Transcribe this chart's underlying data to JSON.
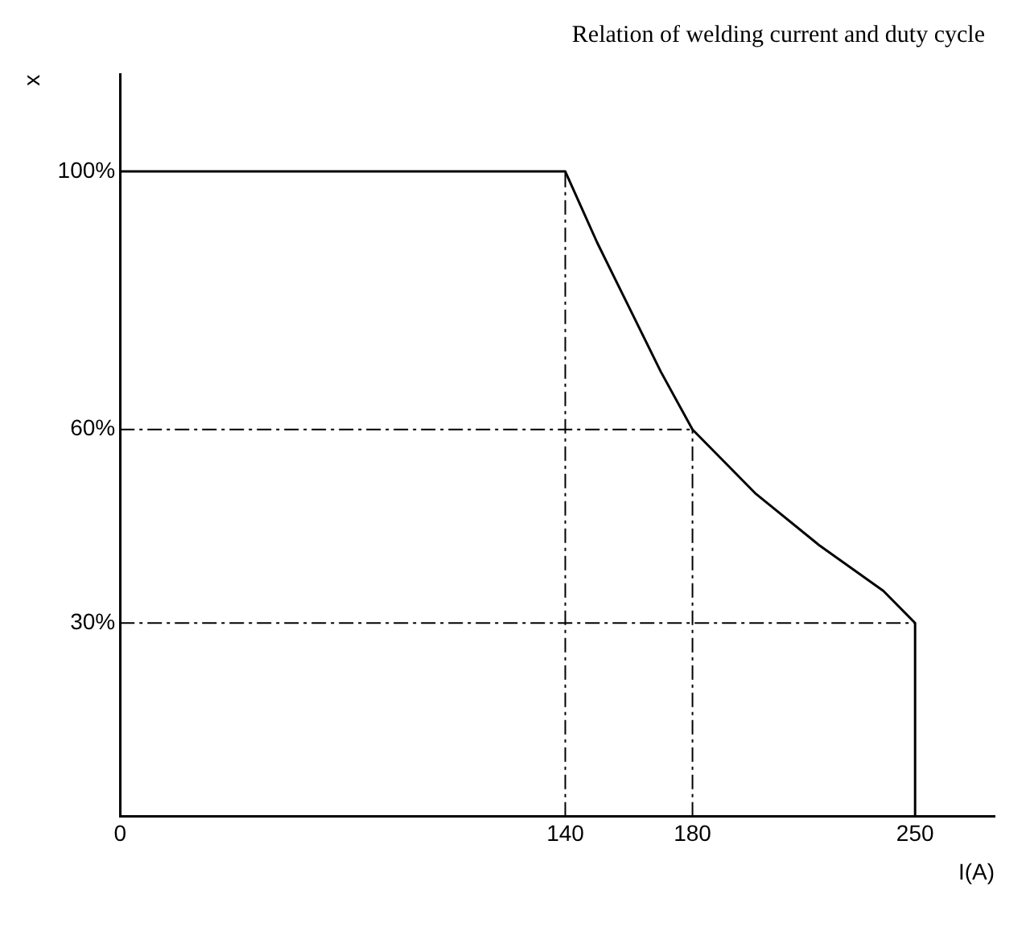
{
  "chart_data": {
    "type": "line",
    "title": "Relation of welding current and duty cycle",
    "xlabel": "I(A)",
    "ylabel": "x",
    "series": [
      {
        "color": "#000000",
        "x": [
          0,
          140,
          150,
          160,
          170,
          180,
          200,
          220,
          240,
          250,
          250
        ],
        "values": [
          100,
          100,
          89,
          79,
          69,
          60,
          50,
          42,
          35,
          30,
          0
        ]
      }
    ],
    "xlim": [
      0,
      275
    ],
    "xticks": [
      0,
      140,
      180,
      250
    ],
    "ylim": [
      0,
      115
    ],
    "yticks": [
      {
        "value": 30,
        "label": "30%"
      },
      {
        "value": 60,
        "label": "60%"
      },
      {
        "value": 100,
        "label": "100%"
      }
    ],
    "ref_lines": [
      {
        "axis": "x",
        "value": 140,
        "line_style": "dashed",
        "color": "#000000"
      },
      {
        "axis": "x",
        "value": 180,
        "line_style": "dashed",
        "color": "#000000"
      },
      {
        "axis": "y",
        "value": 60,
        "line_style": "dashed",
        "color": "#000000"
      },
      {
        "axis": "y",
        "value": 30,
        "line_style": "dashed",
        "color": "#000000"
      }
    ],
    "grid": false,
    "legend": false,
    "marker": "none",
    "line_style": "solid"
  }
}
